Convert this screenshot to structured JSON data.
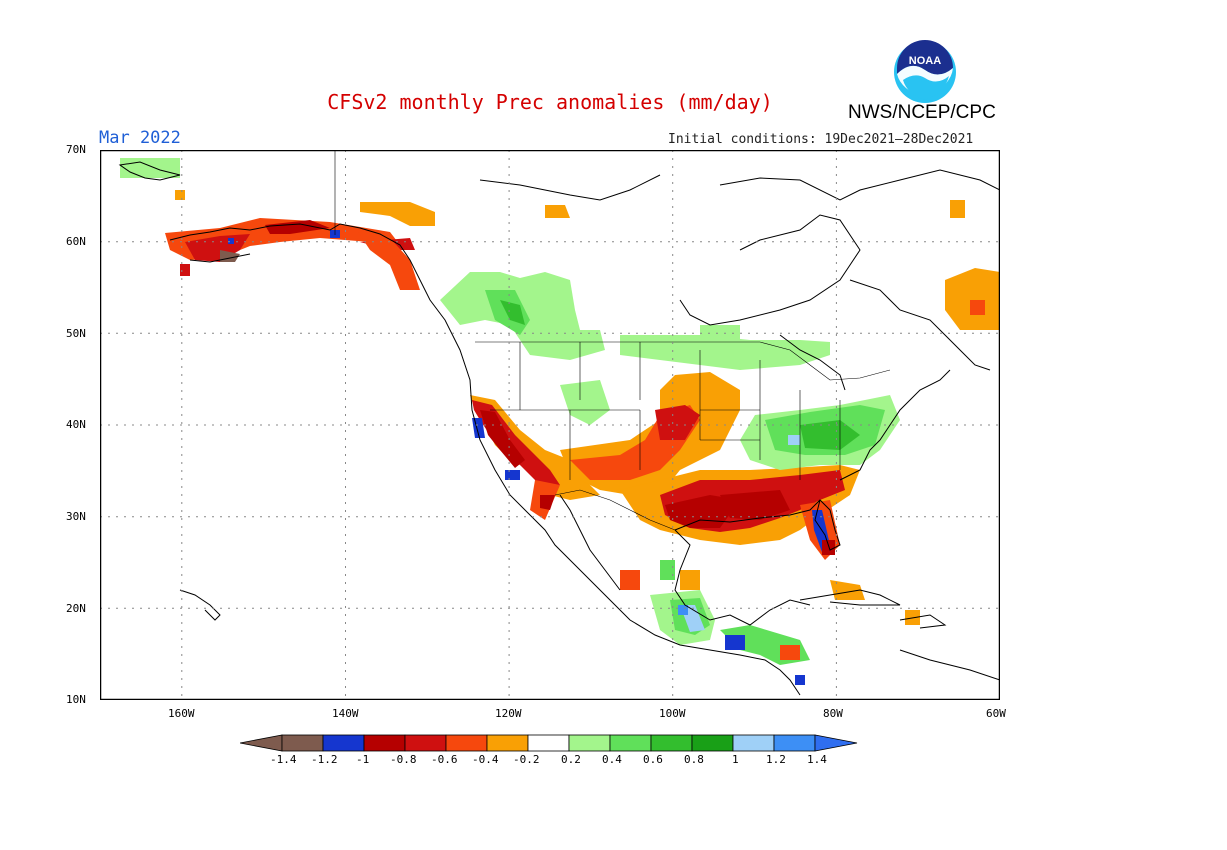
{
  "header": {
    "title": "CFSv2 monthly Prec anomalies (mm/day)",
    "period": "Mar 2022",
    "initial_conditions": "Initial conditions: 19Dec2021–28Dec2021",
    "agency": "NWS/NCEP/CPC",
    "logo_text": "NOAA"
  },
  "map": {
    "lat_labels": [
      "70N",
      "60N",
      "50N",
      "40N",
      "30N",
      "20N",
      "10N"
    ],
    "lon_labels": [
      "160W",
      "140W",
      "120W",
      "100W",
      "80W",
      "60W"
    ],
    "lat_range": [
      10,
      70
    ],
    "lon_range": [
      -170,
      -60
    ],
    "grid": "dotted gray every 10 degrees"
  },
  "colorbar": {
    "labels": [
      "-1.4",
      "-1.2",
      "-1",
      "-0.8",
      "-0.6",
      "-0.4",
      "-0.2",
      "0.2",
      "0.4",
      "0.6",
      "0.8",
      "1",
      "1.2",
      "1.4"
    ],
    "colors": [
      "#7e5b4e",
      "#7e5b4e",
      "#1536cf",
      "#b50000",
      "#cf1010",
      "#f6480d",
      "#f9a005",
      "#ffffff",
      "#a3f58c",
      "#60e05a",
      "#33be2e",
      "#19a017",
      "#9fd0f7",
      "#3d8ff5",
      "#2f6ef0"
    ]
  },
  "colors": {
    "title": "#d40000",
    "period": "#1f5fd6"
  }
}
